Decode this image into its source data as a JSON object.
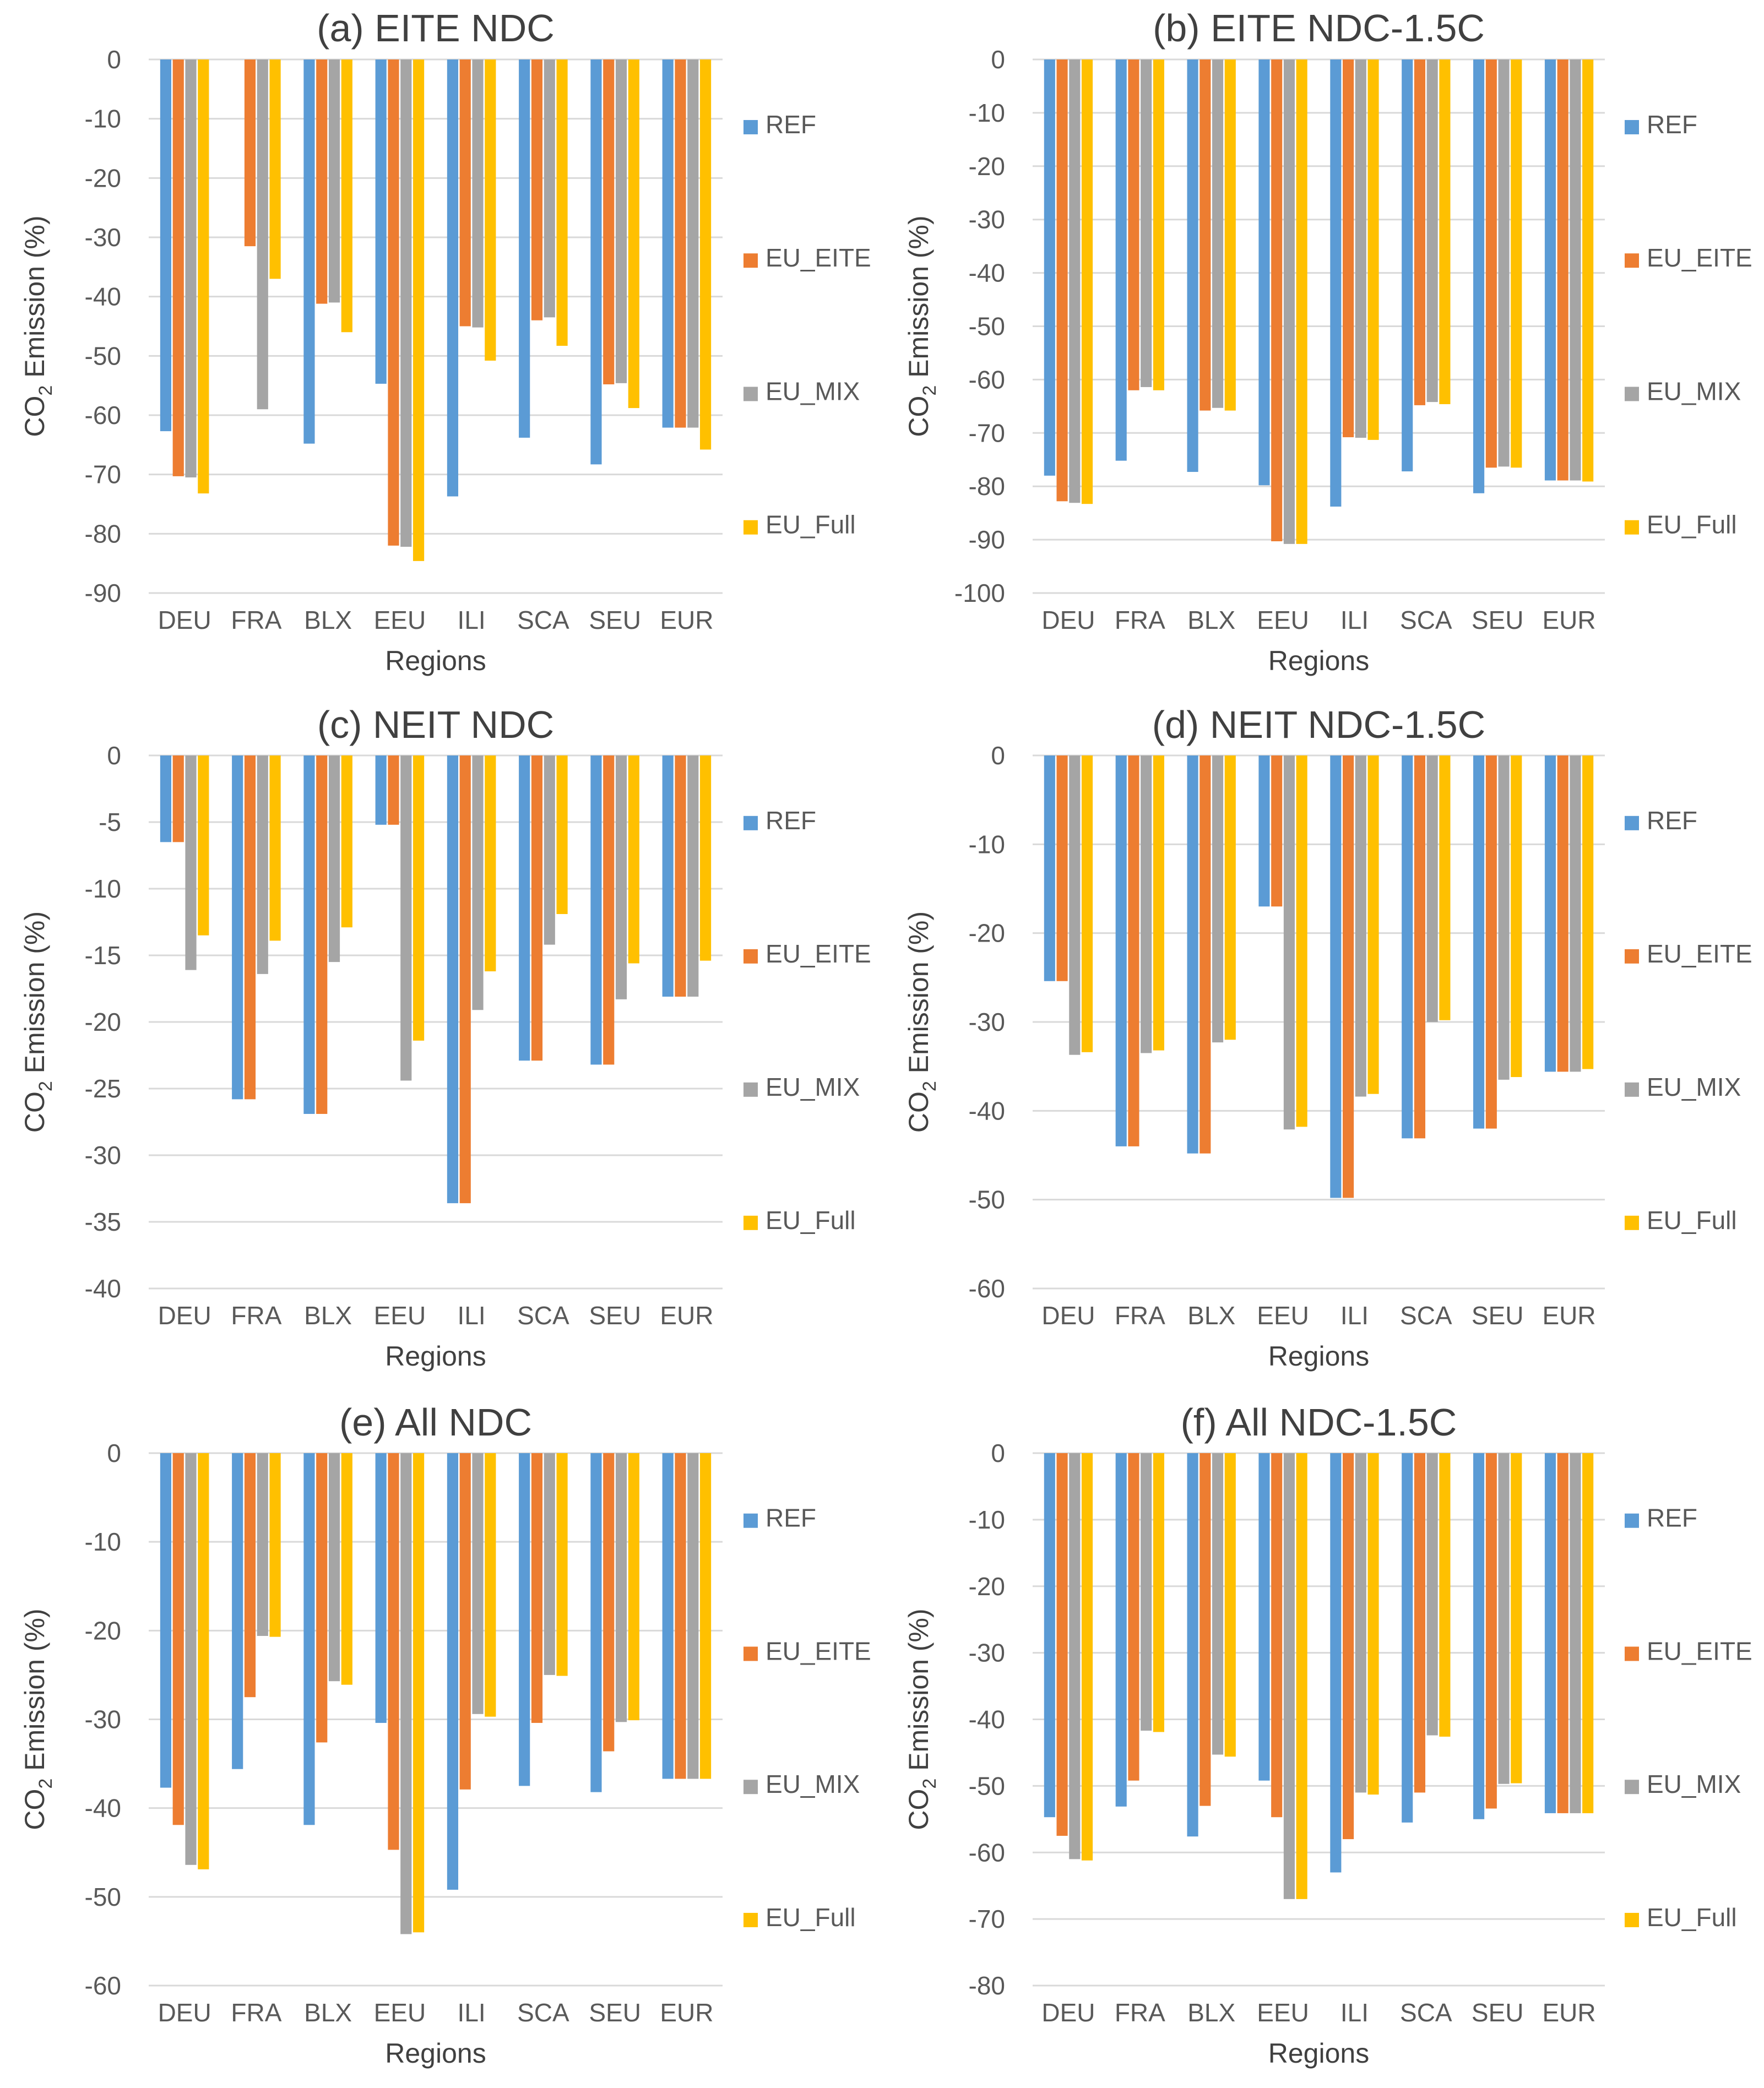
{
  "colors": {
    "REF": "#5b9bd5",
    "EU_EITE": "#ed7d31",
    "EU_MIX": "#a5a5a5",
    "EU_Full": "#ffc000"
  },
  "chart_data": [
    {
      "type": "bar",
      "title": "(a) EITE NDC",
      "xlabel": "Regions",
      "ylabel_main": "CO",
      "ylabel_sub": "2",
      "ylabel_rest": " Emission (%)",
      "ylim": [
        -90,
        0
      ],
      "yticks": [
        0,
        -10,
        -20,
        -30,
        -40,
        -50,
        -60,
        -70,
        -80,
        -90
      ],
      "categories": [
        "DEU",
        "FRA",
        "BLX",
        "EEU",
        "ILI",
        "SCA",
        "SEU",
        "EUR"
      ],
      "series": [
        {
          "name": "REF",
          "values": [
            -62.7,
            0,
            -64.8,
            -54.7,
            -73.7,
            -63.8,
            -68.3,
            -62.1
          ]
        },
        {
          "name": "EU_EITE",
          "values": [
            -70.3,
            -31.5,
            -41.2,
            -82.0,
            -45.0,
            -44.0,
            -54.8,
            -62.1
          ]
        },
        {
          "name": "EU_MIX",
          "values": [
            -70.5,
            -59.0,
            -41.0,
            -82.2,
            -45.2,
            -43.5,
            -54.6,
            -62.1
          ]
        },
        {
          "name": "EU_Full",
          "values": [
            -73.2,
            -37.0,
            -46.0,
            -84.6,
            -50.8,
            -48.3,
            -58.8,
            -65.8
          ]
        }
      ]
    },
    {
      "type": "bar",
      "title": "(b) EITE NDC-1.5C",
      "xlabel": "Regions",
      "ylabel_main": "CO",
      "ylabel_sub": "2",
      "ylabel_rest": " Emission (%)",
      "ylim": [
        -100,
        0
      ],
      "yticks": [
        0,
        -10,
        -20,
        -30,
        -40,
        -50,
        -60,
        -70,
        -80,
        -90,
        -100
      ],
      "categories": [
        "DEU",
        "FRA",
        "BLX",
        "EEU",
        "ILI",
        "SCA",
        "SEU",
        "EUR"
      ],
      "series": [
        {
          "name": "REF",
          "values": [
            -78.0,
            -75.2,
            -77.3,
            -79.8,
            -83.8,
            -77.2,
            -81.3,
            -78.9
          ]
        },
        {
          "name": "EU_EITE",
          "values": [
            -82.8,
            -62.0,
            -65.8,
            -90.3,
            -70.8,
            -64.8,
            -76.5,
            -78.9
          ]
        },
        {
          "name": "EU_MIX",
          "values": [
            -83.1,
            -61.4,
            -65.3,
            -90.8,
            -70.9,
            -64.2,
            -76.3,
            -78.9
          ]
        },
        {
          "name": "EU_Full",
          "values": [
            -83.3,
            -62.0,
            -65.8,
            -90.8,
            -71.3,
            -64.6,
            -76.5,
            -79.1
          ]
        }
      ]
    },
    {
      "type": "bar",
      "title": "(c) NEIT NDC",
      "xlabel": "Regions",
      "ylabel_main": "CO",
      "ylabel_sub": "2",
      "ylabel_rest": " Emission (%)",
      "ylim": [
        -40,
        0
      ],
      "yticks": [
        0,
        -5,
        -10,
        -15,
        -20,
        -25,
        -30,
        -35,
        -40
      ],
      "categories": [
        "DEU",
        "FRA",
        "BLX",
        "EEU",
        "ILI",
        "SCA",
        "SEU",
        "EUR"
      ],
      "series": [
        {
          "name": "REF",
          "values": [
            -6.5,
            -25.8,
            -26.9,
            -5.2,
            -33.6,
            -22.9,
            -23.2,
            -18.1
          ]
        },
        {
          "name": "EU_EITE",
          "values": [
            -6.5,
            -25.8,
            -26.9,
            -5.2,
            -33.6,
            -22.9,
            -23.2,
            -18.1
          ]
        },
        {
          "name": "EU_MIX",
          "values": [
            -16.1,
            -16.4,
            -15.5,
            -24.4,
            -19.1,
            -14.2,
            -18.3,
            -18.1
          ]
        },
        {
          "name": "EU_Full",
          "values": [
            -13.5,
            -13.9,
            -12.9,
            -21.4,
            -16.2,
            -11.9,
            -15.6,
            -15.4
          ]
        }
      ]
    },
    {
      "type": "bar",
      "title": "(d) NEIT NDC-1.5C",
      "xlabel": "Regions",
      "ylabel_main": "CO",
      "ylabel_sub": "2",
      "ylabel_rest": " Emission (%)",
      "ylim": [
        -60,
        0
      ],
      "yticks": [
        0,
        -10,
        -20,
        -30,
        -40,
        -50,
        -60
      ],
      "categories": [
        "DEU",
        "FRA",
        "BLX",
        "EEU",
        "ILI",
        "SCA",
        "SEU",
        "EUR"
      ],
      "series": [
        {
          "name": "REF",
          "values": [
            -25.4,
            -44.0,
            -44.8,
            -17.0,
            -49.8,
            -43.1,
            -42.0,
            -35.6
          ]
        },
        {
          "name": "EU_EITE",
          "values": [
            -25.4,
            -44.0,
            -44.8,
            -17.0,
            -49.8,
            -43.1,
            -42.0,
            -35.6
          ]
        },
        {
          "name": "EU_MIX",
          "values": [
            -33.7,
            -33.5,
            -32.3,
            -42.1,
            -38.4,
            -30.0,
            -36.5,
            -35.6
          ]
        },
        {
          "name": "EU_Full",
          "values": [
            -33.4,
            -33.2,
            -32.0,
            -41.8,
            -38.1,
            -29.8,
            -36.2,
            -35.3
          ]
        }
      ]
    },
    {
      "type": "bar",
      "title": "(e) All NDC",
      "xlabel": "Regions",
      "ylabel_main": "CO",
      "ylabel_sub": "2",
      "ylabel_rest": " Emission (%)",
      "ylim": [
        -60,
        0
      ],
      "yticks": [
        0,
        -10,
        -20,
        -30,
        -40,
        -50,
        -60
      ],
      "categories": [
        "DEU",
        "FRA",
        "BLX",
        "EEU",
        "ILI",
        "SCA",
        "SEU",
        "EUR"
      ],
      "series": [
        {
          "name": "REF",
          "values": [
            -37.7,
            -35.6,
            -41.9,
            -30.4,
            -49.2,
            -37.5,
            -38.2,
            -36.7
          ]
        },
        {
          "name": "EU_EITE",
          "values": [
            -41.9,
            -27.5,
            -32.6,
            -44.7,
            -37.9,
            -30.4,
            -33.6,
            -36.7
          ]
        },
        {
          "name": "EU_MIX",
          "values": [
            -46.4,
            -20.6,
            -25.7,
            -54.2,
            -29.4,
            -25.0,
            -30.3,
            -36.7
          ]
        },
        {
          "name": "EU_Full",
          "values": [
            -46.9,
            -20.7,
            -26.1,
            -54.0,
            -29.7,
            -25.1,
            -30.1,
            -36.7
          ]
        }
      ]
    },
    {
      "type": "bar",
      "title": "(f) All NDC-1.5C",
      "xlabel": "Regions",
      "ylabel_main": "CO",
      "ylabel_sub": "2",
      "ylabel_rest": " Emission (%)",
      "ylim": [
        -80,
        0
      ],
      "yticks": [
        0,
        -10,
        -20,
        -30,
        -40,
        -50,
        -60,
        -70,
        -80
      ],
      "categories": [
        "DEU",
        "FRA",
        "BLX",
        "EEU",
        "ILI",
        "SCA",
        "SEU",
        "EUR"
      ],
      "series": [
        {
          "name": "REF",
          "values": [
            -54.7,
            -53.1,
            -57.6,
            -49.2,
            -63.0,
            -55.5,
            -55.0,
            -54.1
          ]
        },
        {
          "name": "EU_EITE",
          "values": [
            -57.5,
            -49.2,
            -53.0,
            -54.7,
            -58.0,
            -51.0,
            -53.4,
            -54.1
          ]
        },
        {
          "name": "EU_MIX",
          "values": [
            -61.0,
            -41.7,
            -45.3,
            -67.0,
            -51.0,
            -42.4,
            -49.7,
            -54.1
          ]
        },
        {
          "name": "EU_Full",
          "values": [
            -61.2,
            -41.9,
            -45.6,
            -67.0,
            -51.3,
            -42.6,
            -49.6,
            -54.1
          ]
        }
      ]
    }
  ]
}
